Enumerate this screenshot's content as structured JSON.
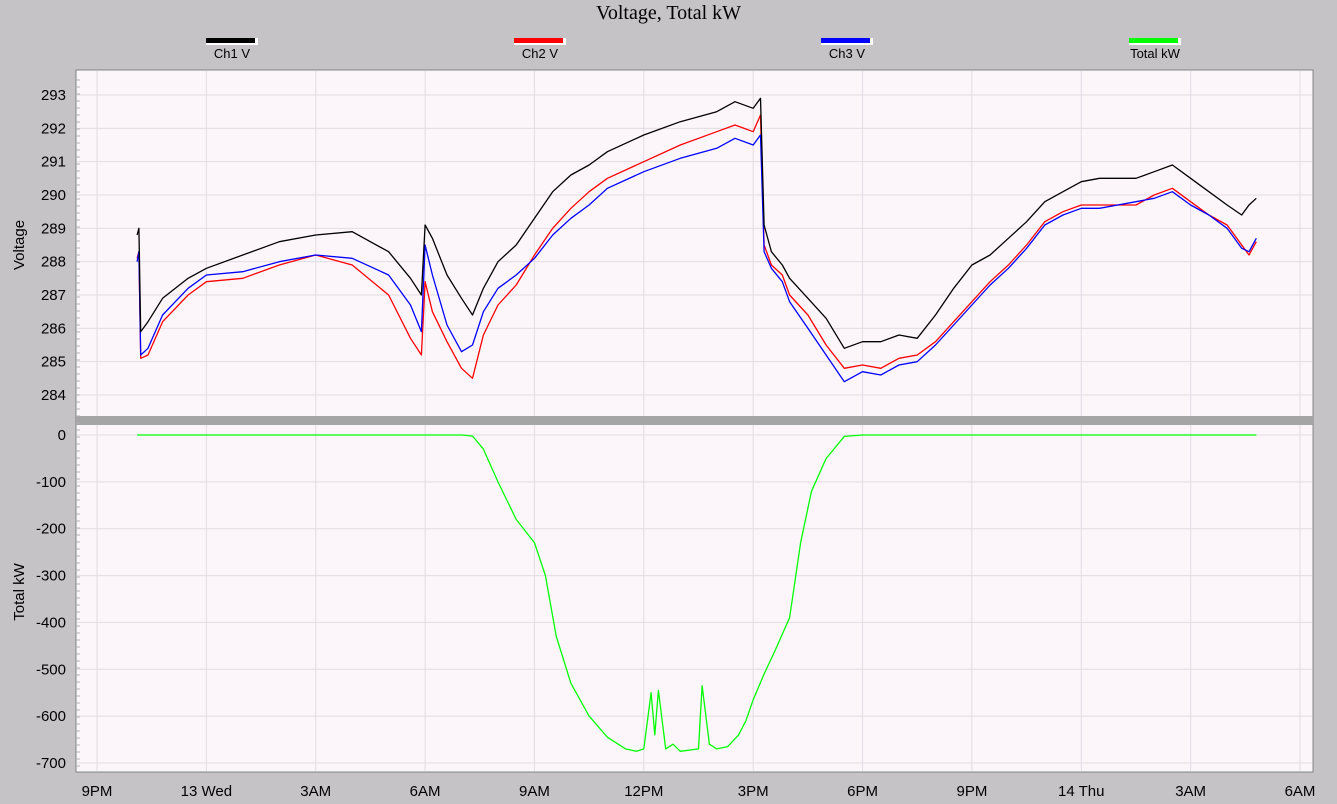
{
  "chart_data": {
    "type": "line",
    "title": "Voltage, Total kW",
    "legend_position": "top",
    "grid": true,
    "x_tick_labels": [
      "9PM",
      "13 Wed",
      "3AM",
      "6AM",
      "9AM",
      "12PM",
      "3PM",
      "6PM",
      "9PM",
      "14 Thu",
      "3AM",
      "6AM"
    ],
    "x_range_hours": [
      -3,
      30
    ],
    "top_panel": {
      "ylabel": "Voltage",
      "ylim": [
        283.4,
        293.3
      ],
      "yticks": [
        284,
        285,
        286,
        287,
        288,
        289,
        290,
        291,
        292,
        293
      ],
      "series": [
        {
          "name": "Ch1 V",
          "color": "#000000",
          "x_hours": [
            -1.9,
            -1.85,
            -1.8,
            -1.6,
            -1.2,
            -0.5,
            0,
            1,
            2,
            3,
            4,
            5,
            5.6,
            5.9,
            6,
            6.2,
            6.6,
            7,
            7.3,
            7.6,
            8,
            8.5,
            9,
            9.5,
            10,
            10.5,
            11,
            12,
            13,
            14,
            14.5,
            15,
            15.2,
            15.3,
            15.5,
            15.8,
            16,
            16.5,
            17,
            17.5,
            18,
            18.5,
            19,
            19.5,
            20,
            20.5,
            21,
            21.5,
            22,
            22.5,
            23,
            23.5,
            24,
            24.5,
            25,
            25.5,
            26,
            26.5,
            27,
            27.5,
            28,
            28.4,
            28.6,
            28.8
          ],
          "values": [
            288.8,
            289,
            285.9,
            286.2,
            286.9,
            287.5,
            287.8,
            288.2,
            288.6,
            288.8,
            288.9,
            288.3,
            287.5,
            287,
            289.1,
            288.7,
            287.6,
            286.9,
            286.4,
            287.2,
            288,
            288.5,
            289.3,
            290.1,
            290.6,
            290.9,
            291.3,
            291.8,
            292.2,
            292.5,
            292.8,
            292.6,
            292.9,
            289.1,
            288.3,
            287.9,
            287.5,
            286.9,
            286.3,
            285.4,
            285.6,
            285.6,
            285.8,
            285.7,
            286.4,
            287.2,
            287.9,
            288.2,
            288.7,
            289.2,
            289.8,
            290.1,
            290.4,
            290.5,
            290.5,
            290.5,
            290.7,
            290.9,
            290.5,
            290.1,
            289.7,
            289.4,
            289.7,
            289.9
          ]
        },
        {
          "name": "Ch2 V",
          "color": "#ff0000",
          "x_hours": [
            -1.9,
            -1.85,
            -1.8,
            -1.6,
            -1.2,
            -0.5,
            0,
            1,
            2,
            3,
            4,
            5,
            5.6,
            5.9,
            6,
            6.2,
            6.6,
            7,
            7.3,
            7.6,
            8,
            8.5,
            9,
            9.5,
            10,
            10.5,
            11,
            12,
            13,
            14,
            14.5,
            15,
            15.2,
            15.3,
            15.5,
            15.8,
            16,
            16.5,
            17,
            17.5,
            18,
            18.5,
            19,
            19.5,
            20,
            20.5,
            21,
            21.5,
            22,
            22.5,
            23,
            23.5,
            24,
            24.5,
            25,
            25.5,
            26,
            26.5,
            27,
            27.5,
            28,
            28.4,
            28.6,
            28.8
          ],
          "values": [
            288.1,
            288.3,
            285.1,
            285.2,
            286.2,
            287,
            287.4,
            287.5,
            287.9,
            288.2,
            287.9,
            287,
            285.7,
            285.2,
            287.4,
            286.5,
            285.6,
            284.8,
            284.5,
            285.8,
            286.7,
            287.3,
            288.2,
            289,
            289.6,
            290.1,
            290.5,
            291,
            291.5,
            291.9,
            292.1,
            291.9,
            292.4,
            288.5,
            287.9,
            287.6,
            287,
            286.4,
            285.5,
            284.8,
            284.9,
            284.8,
            285.1,
            285.2,
            285.6,
            286.2,
            286.8,
            287.4,
            287.9,
            288.5,
            289.2,
            289.5,
            289.7,
            289.7,
            289.7,
            289.7,
            290,
            290.2,
            289.8,
            289.4,
            289.1,
            288.5,
            288.2,
            288.6
          ]
        },
        {
          "name": "Ch3 V",
          "color": "#0000ff",
          "x_hours": [
            -1.9,
            -1.85,
            -1.8,
            -1.6,
            -1.2,
            -0.5,
            0,
            1,
            2,
            3,
            4,
            5,
            5.6,
            5.9,
            6,
            6.2,
            6.6,
            7,
            7.3,
            7.6,
            8,
            8.5,
            9,
            9.5,
            10,
            10.5,
            11,
            12,
            13,
            14,
            14.5,
            15,
            15.2,
            15.3,
            15.5,
            15.8,
            16,
            16.5,
            17,
            17.5,
            18,
            18.5,
            19,
            19.5,
            20,
            20.5,
            21,
            21.5,
            22,
            22.5,
            23,
            23.5,
            24,
            24.5,
            25,
            25.5,
            26,
            26.5,
            27,
            27.5,
            28,
            28.4,
            28.6,
            28.8
          ],
          "values": [
            288,
            288.3,
            285.2,
            285.4,
            286.4,
            287.2,
            287.6,
            287.7,
            288,
            288.2,
            288.1,
            287.6,
            286.7,
            285.9,
            288.5,
            287.6,
            286.1,
            285.3,
            285.5,
            286.5,
            287.2,
            287.6,
            288.1,
            288.8,
            289.3,
            289.7,
            290.2,
            290.7,
            291.1,
            291.4,
            291.7,
            291.5,
            291.8,
            288.3,
            287.8,
            287.4,
            286.8,
            286,
            285.2,
            284.4,
            284.7,
            284.6,
            284.9,
            285,
            285.5,
            286.1,
            286.7,
            287.3,
            287.8,
            288.4,
            289.1,
            289.4,
            289.6,
            289.6,
            289.7,
            289.8,
            289.9,
            290.1,
            289.7,
            289.4,
            289,
            288.4,
            288.3,
            288.7
          ]
        }
      ]
    },
    "bottom_panel": {
      "ylabel": "Total kW",
      "ylim": [
        -715,
        15
      ],
      "yticks": [
        0,
        -100,
        -200,
        -300,
        -400,
        -500,
        -600,
        -700
      ],
      "series": [
        {
          "name": "Total kW",
          "color": "#00ff00",
          "x_hours": [
            -1.9,
            7,
            7.3,
            7.6,
            8,
            8.5,
            9,
            9.3,
            9.6,
            10,
            10.5,
            11,
            11.5,
            11.8,
            12,
            12.2,
            12.3,
            12.4,
            12.6,
            12.8,
            13,
            13.5,
            13.6,
            13.8,
            14,
            14.3,
            14.6,
            14.8,
            15,
            15.3,
            15.6,
            16,
            16.3,
            16.6,
            17,
            17.5,
            18,
            19,
            20,
            21,
            22,
            23,
            24,
            25,
            26,
            27,
            28,
            28.8
          ],
          "values": [
            0,
            0,
            -2,
            -30,
            -100,
            -180,
            -230,
            -300,
            -430,
            -530,
            -600,
            -645,
            -670,
            -675,
            -670,
            -550,
            -640,
            -545,
            -670,
            -660,
            -675,
            -670,
            -535,
            -660,
            -670,
            -665,
            -640,
            -610,
            -565,
            -510,
            -460,
            -390,
            -230,
            -120,
            -50,
            -3,
            0,
            0,
            0,
            0,
            0,
            0,
            0,
            0,
            0,
            0,
            0,
            0
          ]
        }
      ]
    }
  }
}
